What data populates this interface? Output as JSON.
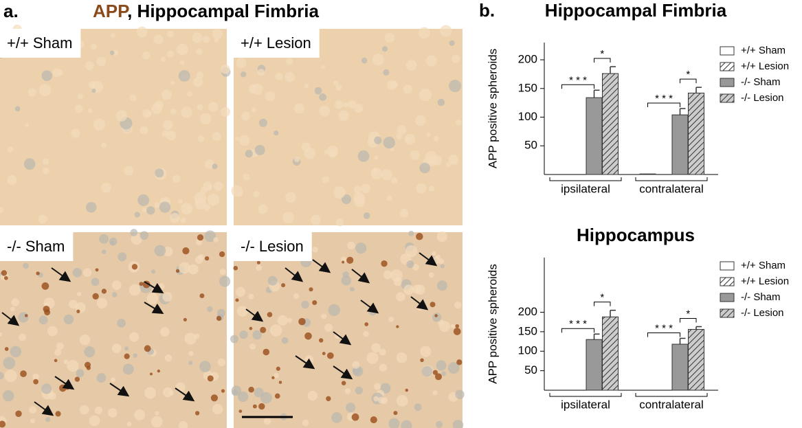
{
  "panel_a": {
    "label": "a.",
    "title_highlight": "APP",
    "title_rest": ", Hippocampal Fimbria",
    "panels": [
      "+/+ Sham",
      "+/+ Lesion",
      "-/- Sham",
      "-/- Lesion"
    ]
  },
  "chart_data": [
    {
      "type": "bar",
      "panel_label": "b.",
      "title": "Hippocampal Fimbria",
      "y_label": "APP positive spheroids",
      "categories": [
        "ipsilateral",
        "contralateral"
      ],
      "series": [
        {
          "name": "+/+ Sham",
          "color": "#ffffff",
          "hatch": false,
          "values": [
            0,
            1
          ],
          "errors": [
            0,
            0
          ]
        },
        {
          "name": "+/+ Lesion",
          "color": "#ffffff",
          "hatch": true,
          "values": [
            0,
            0
          ],
          "errors": [
            0,
            0
          ]
        },
        {
          "name": "-/- Sham",
          "color": "#999999",
          "hatch": false,
          "values": [
            134,
            104
          ],
          "errors": [
            13,
            11
          ]
        },
        {
          "name": "-/- Lesion",
          "color": "#cccccc",
          "hatch": true,
          "values": [
            176,
            142
          ],
          "errors": [
            12,
            10
          ]
        }
      ],
      "annotations": [
        "* * *",
        "*",
        "* * *",
        "*"
      ],
      "ylim": [
        0,
        230
      ],
      "yticks": [
        50,
        100,
        150,
        200
      ],
      "legend": "upper right"
    },
    {
      "type": "bar",
      "title": "Hippocampus",
      "y_label": "APP positive spheroids",
      "categories": [
        "ipsilateral",
        "contralateral"
      ],
      "series": [
        {
          "name": "+/+ Sham",
          "color": "#ffffff",
          "hatch": false,
          "values": [
            0,
            0
          ],
          "errors": [
            0,
            0
          ]
        },
        {
          "name": "+/+ Lesion",
          "color": "#ffffff",
          "hatch": true,
          "values": [
            0,
            0
          ],
          "errors": [
            0,
            0
          ]
        },
        {
          "name": "-/- Sham",
          "color": "#999999",
          "hatch": false,
          "values": [
            130,
            118
          ],
          "errors": [
            14,
            15
          ]
        },
        {
          "name": "-/- Lesion",
          "color": "#cccccc",
          "hatch": true,
          "values": [
            188,
            156
          ],
          "errors": [
            17,
            7
          ]
        }
      ],
      "annotations": [
        "* * *",
        "*",
        "* * *",
        "*"
      ],
      "ylim": [
        0,
        340
      ],
      "yticks": [
        50,
        100,
        150,
        200
      ],
      "legend": "upper right"
    }
  ]
}
